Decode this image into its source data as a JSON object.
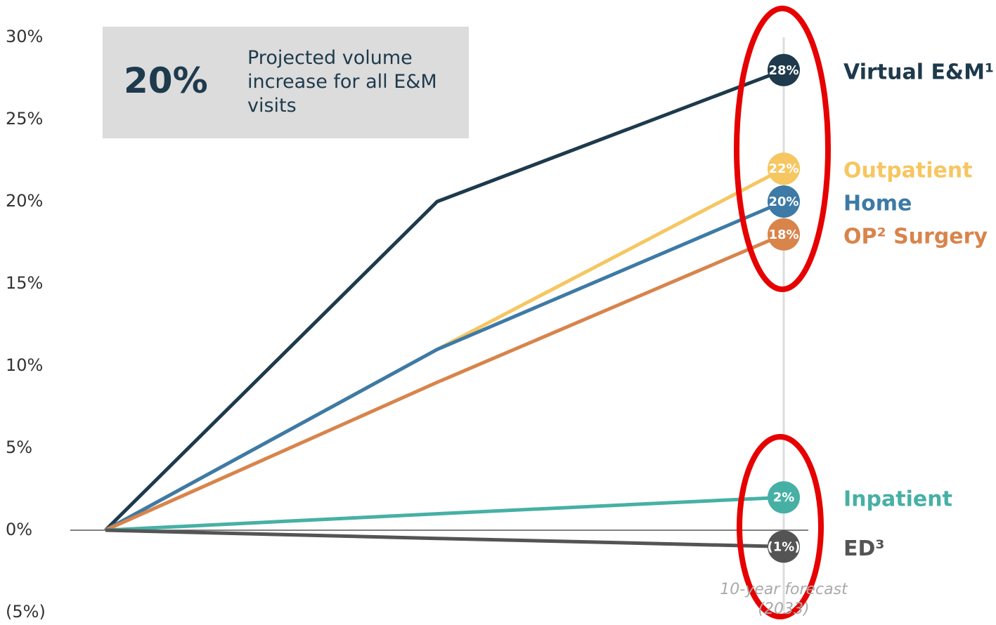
{
  "chart_data": {
    "type": "line",
    "categories": [
      null,
      null,
      "10-year forecast (2033)"
    ],
    "ylim": [
      -5,
      30
    ],
    "yticks": [
      {
        "value": -5,
        "label": "(5%)"
      },
      {
        "value": 0,
        "label": "0%"
      },
      {
        "value": 5,
        "label": "5%"
      },
      {
        "value": 10,
        "label": "10%"
      },
      {
        "value": 15,
        "label": "15%"
      },
      {
        "value": 20,
        "label": "20%"
      },
      {
        "value": 25,
        "label": "25%"
      },
      {
        "value": 30,
        "label": "30%"
      }
    ],
    "annotation": {
      "value": "20%",
      "text": "Projected volume increase for all E&M visits"
    },
    "series": [
      {
        "name": "Virtual E&M¹",
        "color": "#1e3a4c",
        "values": [
          0,
          20,
          28
        ],
        "value_labels": [
          null,
          null,
          "28%"
        ]
      },
      {
        "name": "Outpatient",
        "color": "#f6c661",
        "values": [
          0,
          11,
          22
        ],
        "value_labels": [
          null,
          null,
          "22%"
        ]
      },
      {
        "name": "Home",
        "color": "#3d7aa6",
        "values": [
          0,
          11,
          20
        ],
        "value_labels": [
          null,
          null,
          "20%"
        ]
      },
      {
        "name": "OP² Surgery",
        "color": "#d8844b",
        "values": [
          0,
          9,
          18
        ],
        "value_labels": [
          null,
          null,
          "18%"
        ]
      },
      {
        "name": "Inpatient",
        "color": "#47b0a5",
        "values": [
          0,
          1,
          2
        ],
        "value_labels": [
          null,
          null,
          "2%"
        ]
      },
      {
        "name": "ED³",
        "color": "#545454",
        "values": [
          0,
          -0.5,
          -1
        ],
        "value_labels": [
          null,
          null,
          "(1%)"
        ]
      }
    ]
  }
}
